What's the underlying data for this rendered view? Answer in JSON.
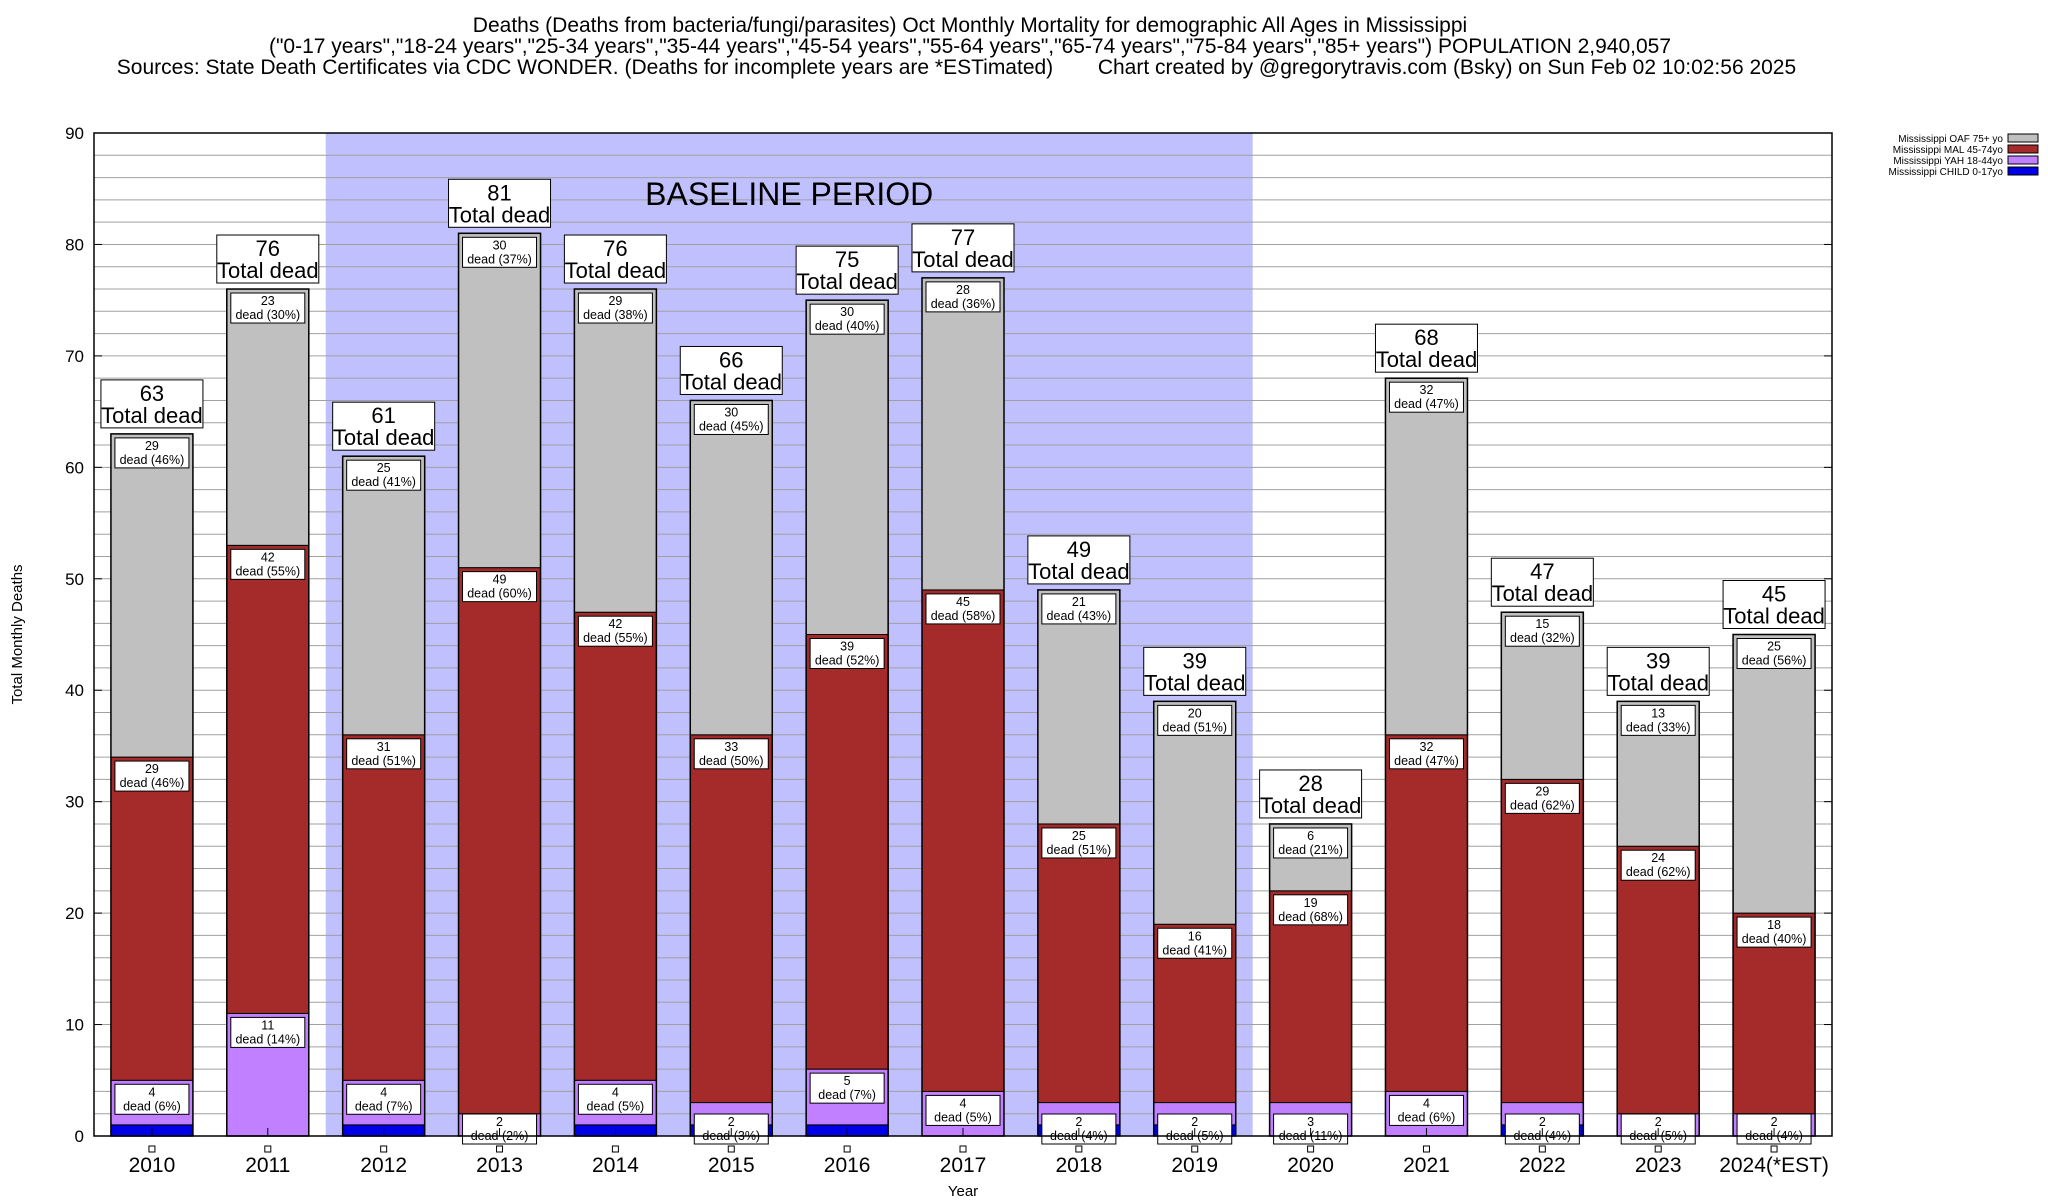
{
  "titles": {
    "line1": "Deaths (Deaths from bacteria/fungi/parasites) Oct Monthly Mortality for demographic All Ages in Mississippi",
    "line2": "(\"0-17 years\",\"18-24 years\",\"25-34 years\",\"35-44 years\",\"45-54 years\",\"55-64 years\",\"65-74 years\",\"75-84 years\",\"85+ years\") POPULATION 2,940,057",
    "line3a": "Sources: State Death Certificates via CDC WONDER. (Deaths for incomplete years are *ESTimated)",
    "line3b": "Chart created by @gregorytravis.com (Bsky) on Sun Feb 02 10:02:56 2025"
  },
  "colors": {
    "child": "#0000e6",
    "yah": "#c080ff",
    "mal": "#a52a2a",
    "oaf": "#c0c0c0",
    "baseline": "#c0c0ff",
    "grid": "#a0a0a0"
  },
  "chart_data": {
    "type": "bar",
    "stacked": true,
    "title": "Deaths (Deaths from bacteria/fungi/parasites) Oct Monthly Mortality for demographic All Ages in Mississippi",
    "xlabel": "Year",
    "ylabel": "Total Monthly Deaths",
    "ylim": [
      0,
      90
    ],
    "yticks": [
      0,
      10,
      20,
      30,
      40,
      50,
      60,
      70,
      80,
      90
    ],
    "categories": [
      "2010",
      "2011",
      "2012",
      "2013",
      "2014",
      "2015",
      "2016",
      "2017",
      "2018",
      "2019",
      "2020",
      "2021",
      "2022",
      "2023",
      "2024(*EST)"
    ],
    "series": [
      {
        "name": "Mississippi CHILD 0-17yo",
        "key": "child",
        "values": [
          1,
          0,
          1,
          0,
          1,
          1,
          1,
          0,
          1,
          1,
          0,
          0,
          1,
          0,
          0
        ]
      },
      {
        "name": "Mississippi YAH 18-44yo",
        "key": "yah",
        "values": [
          4,
          11,
          4,
          2,
          4,
          2,
          5,
          4,
          2,
          2,
          3,
          4,
          2,
          2,
          2
        ]
      },
      {
        "name": "Mississippi MAL 45-74yo",
        "key": "mal",
        "values": [
          29,
          42,
          31,
          49,
          42,
          33,
          39,
          45,
          25,
          16,
          19,
          32,
          29,
          24,
          18
        ]
      },
      {
        "name": "Mississippi OAF 75+ yo",
        "key": "oaf",
        "values": [
          29,
          23,
          25,
          30,
          29,
          30,
          30,
          28,
          21,
          20,
          6,
          32,
          15,
          13,
          25
        ]
      }
    ],
    "yah_pct": [
      "6%",
      "14%",
      "7%",
      "2%",
      "5%",
      "3%",
      "7%",
      "5%",
      "4%",
      "5%",
      "11%",
      "6%",
      "4%",
      "5%",
      "4%"
    ],
    "mal_pct": [
      "46%",
      "55%",
      "51%",
      "60%",
      "55%",
      "50%",
      "52%",
      "58%",
      "51%",
      "41%",
      "68%",
      "47%",
      "62%",
      "62%",
      "40%"
    ],
    "oaf_pct": [
      "46%",
      "30%",
      "41%",
      "37%",
      "38%",
      "45%",
      "40%",
      "36%",
      "43%",
      "51%",
      "21%",
      "47%",
      "32%",
      "33%",
      "56%"
    ],
    "totals": [
      63,
      76,
      61,
      81,
      76,
      66,
      75,
      77,
      49,
      39,
      28,
      68,
      47,
      39,
      45
    ],
    "total_label": "Total dead",
    "dead_word": "dead",
    "baseline": {
      "label": "BASELINE PERIOD",
      "from": "2012",
      "to": "2019"
    },
    "legend": [
      "Mississippi OAF 75+ yo",
      "Mississippi MAL 45-74yo",
      "Mississippi YAH 18-44yo",
      "Mississippi CHILD 0-17yo"
    ],
    "legend_position": "top-right"
  }
}
